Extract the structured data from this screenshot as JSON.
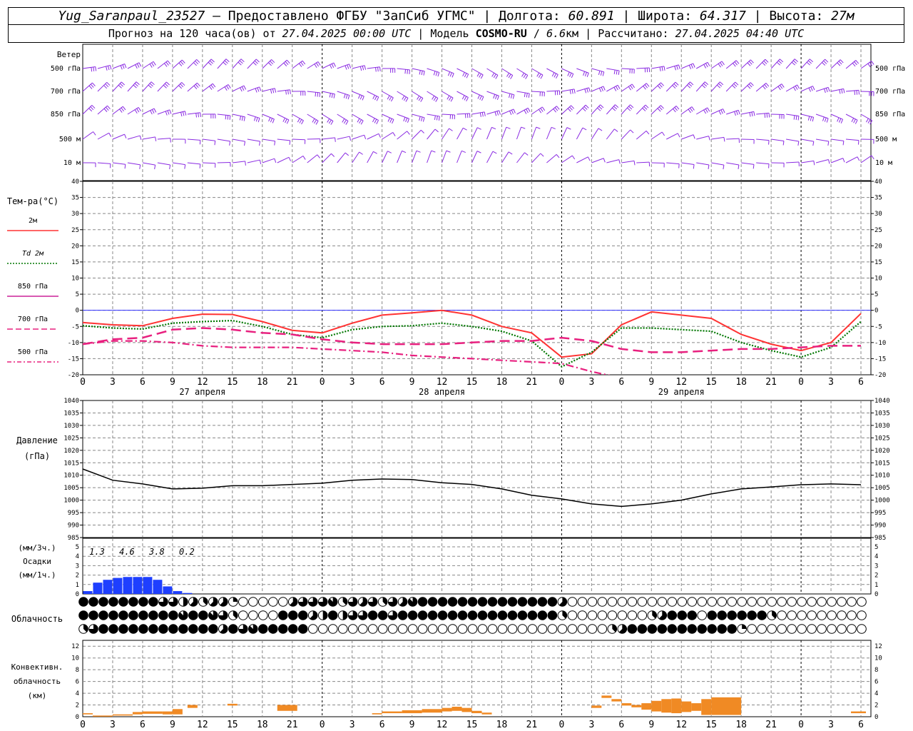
{
  "header": {
    "station": "Yug_Saranpaul_23527",
    "dash": " — ",
    "provider": "Предоставлено ФГБУ \"ЗапСиб УГМС\"",
    "lon_label": "Долгота:",
    "lon_value": "60.891",
    "lat_label": "Широта:",
    "lat_value": "64.317",
    "alt_label": "Высота:",
    "alt_value": "27м",
    "sep": " | ",
    "forecast_prefix": "Прогноз на 120 часа(ов) от",
    "forecast_time": "27.04.2025 00:00 UTC",
    "model_prefix": "Модель",
    "model_name": "COSMO-RU",
    "model_res": "6.6",
    "model_res_unit": "км",
    "calc_label": "Рассчитано:",
    "calc_time": "27.04.2025 04:40 UTC"
  },
  "colors": {
    "wind": "#8a2be2",
    "t2m": "#ff3333",
    "td2m": "#007700",
    "t850": "#cc2299",
    "t700": "#e8207f",
    "t500": "#e8207f",
    "zero_line": "#3333ff",
    "pressure": "#000000",
    "precip": "#1e3fff",
    "convective": "#f08a24",
    "grid": "#888888"
  },
  "chart_data": [
    {
      "type": "line",
      "title": "Ветер",
      "panel": "wind",
      "levels": [
        "500 гПа",
        "700 гПа",
        "850 гПа",
        "500 м",
        "10 м"
      ],
      "x_hours": [
        0,
        120
      ]
    },
    {
      "type": "line",
      "panel": "temperature",
      "title": "Тем-ра(°C)",
      "ylim": [
        -20,
        40
      ],
      "yticks": [
        -20,
        -15,
        -10,
        -5,
        0,
        5,
        10,
        15,
        20,
        25,
        30,
        35,
        40
      ],
      "x_ticks": [
        "0",
        "3",
        "6",
        "9",
        "12",
        "15",
        "18",
        "21",
        "0",
        "3",
        "6",
        "9",
        "12",
        "15",
        "18",
        "21",
        "0",
        "3",
        "6",
        "9",
        "12",
        "15",
        "18",
        "21",
        "0",
        "3",
        "6"
      ],
      "day_labels": [
        "27 апреля",
        "28 апреля",
        "29 апреля"
      ],
      "legend": [
        {
          "label": "2м",
          "style": "solid",
          "color": "#ff3333"
        },
        {
          "label": "Td  2м",
          "style": "dotted",
          "color": "#007700"
        },
        {
          "label": "850 гПа",
          "style": "solid",
          "color": "#cc2299"
        },
        {
          "label": "700 гПа",
          "style": "dashed",
          "color": "#e8207f"
        },
        {
          "label": "500 гПа",
          "style": "dashdot",
          "color": "#e8207f"
        }
      ],
      "x": [
        0,
        3,
        6,
        9,
        12,
        15,
        18,
        21,
        24,
        27,
        30,
        33,
        36,
        39,
        42,
        45,
        48,
        51,
        54,
        57,
        60,
        63,
        66,
        69,
        72,
        75,
        78
      ],
      "series": [
        {
          "name": "2м",
          "style": "solid",
          "values": [
            -3.8,
            -4.5,
            -4.8,
            -2.5,
            -1.2,
            -1.3,
            -3.5,
            -6.2,
            -7.0,
            -4.0,
            -1.5,
            -0.8,
            0.0,
            -1.5,
            -5.0,
            -7.0,
            -14.5,
            -13.5,
            -4.5,
            -0.5,
            -1.5,
            -2.5,
            -7.5,
            -10.5,
            -12.5,
            -10.0,
            -1.0
          ]
        },
        {
          "name": "Td  2м",
          "style": "dotted",
          "values": [
            -4.8,
            -5.5,
            -5.8,
            -4.0,
            -3.5,
            -3.2,
            -5.0,
            -7.5,
            -8.5,
            -6.0,
            -5.0,
            -4.8,
            -4.0,
            -5.0,
            -6.5,
            -9.5,
            -17.5,
            -13.0,
            -5.5,
            -5.5,
            -6.0,
            -6.5,
            -10.0,
            -12.5,
            -14.5,
            -11.5,
            -3.5
          ]
        },
        {
          "name": "850 гПа",
          "style": "solid",
          "values": [
            -10.0,
            -9.0,
            -8.5,
            -6.0,
            -5.5,
            -6.0,
            -7.0,
            -7.5,
            -9.0,
            -10.0,
            -10.5,
            -10.5,
            -10.5,
            -10.0,
            -9.5,
            -9.5,
            -8.5,
            -9.5,
            -12.0,
            -13.0,
            -13.0,
            -12.5,
            -12.0,
            -12.0,
            -11.5,
            -11.0,
            -11.0
          ]
        },
        {
          "name": "700 гПа",
          "style": "dashed",
          "values": [
            -10.5,
            -9.0,
            -8.5,
            -6.0,
            -5.5,
            -6.0,
            -7.0,
            -7.5,
            -9.0,
            -10.0,
            -10.5,
            -10.5,
            -10.5,
            -10.0,
            -9.5,
            -9.5,
            -8.5,
            -9.5,
            -12.0,
            -13.0,
            -13.0,
            -12.5,
            -12.0,
            -12.0,
            -11.5,
            -11.0,
            -11.0
          ]
        },
        {
          "name": "500 гПа",
          "style": "dashdot",
          "values": [
            -10.5,
            -9.5,
            -9.5,
            -10.0,
            -11.0,
            -11.5,
            -11.5,
            -11.5,
            -12.0,
            -12.5,
            -13.0,
            -14.0,
            -14.5,
            -15.0,
            -15.5,
            -16.0,
            -16.5,
            -19.0,
            -21.0,
            null,
            null,
            null,
            null,
            null,
            null,
            null,
            null
          ]
        }
      ]
    },
    {
      "type": "line",
      "panel": "pressure",
      "title": "Давление",
      "ylabel": "(гПа)",
      "ylim": [
        985,
        1040
      ],
      "yticks": [
        985,
        990,
        995,
        1000,
        1005,
        1010,
        1015,
        1020,
        1025,
        1030,
        1035,
        1040
      ],
      "x": [
        0,
        3,
        6,
        9,
        12,
        15,
        18,
        21,
        24,
        27,
        30,
        33,
        36,
        39,
        42,
        45,
        48,
        51,
        54,
        57,
        60,
        63,
        66,
        69,
        72,
        75,
        78
      ],
      "series": [
        {
          "name": "Давление",
          "values": [
            1012.5,
            1008.0,
            1006.5,
            1004.5,
            1004.8,
            1005.8,
            1005.8,
            1006.3,
            1006.8,
            1008.0,
            1008.5,
            1008.3,
            1007.0,
            1006.3,
            1004.5,
            1002.0,
            1000.5,
            998.5,
            997.5,
            998.5,
            1000.0,
            1002.5,
            1004.5,
            1005.3,
            1006.2,
            1006.5,
            1006.2
          ]
        }
      ]
    },
    {
      "type": "bar",
      "panel": "precipitation",
      "title": "Осадки",
      "ylabel_top": "(мм/3ч.)",
      "ylabel_bottom": "(мм/1ч.)",
      "ylim": [
        0,
        5
      ],
      "yticks": [
        0,
        1,
        2,
        3,
        4,
        5
      ],
      "totals_3h": [
        {
          "x": 1.5,
          "value": "1.3"
        },
        {
          "x": 4.5,
          "value": "4.6"
        },
        {
          "x": 7.5,
          "value": "3.8"
        },
        {
          "x": 10.5,
          "value": "0.2"
        }
      ],
      "hours": [
        1,
        2,
        3,
        4,
        5,
        6,
        7,
        8,
        9,
        10,
        11
      ],
      "values": [
        0.3,
        1.2,
        1.5,
        1.7,
        1.8,
        1.8,
        1.8,
        1.5,
        0.8,
        0.3,
        0.1
      ]
    },
    {
      "type": "table",
      "panel": "cloudiness",
      "title": "Облачность",
      "rows": [
        "upper",
        "middle",
        "lower"
      ],
      "hours_total": 79,
      "cover_upper": [
        8,
        8,
        8,
        8,
        8,
        8,
        8,
        8,
        6,
        6,
        4,
        5,
        3,
        5,
        5,
        2,
        0,
        0,
        0,
        0,
        0,
        5,
        6,
        6,
        6,
        7,
        3,
        6,
        5,
        6,
        3,
        6,
        5,
        7,
        8,
        8,
        8,
        8,
        8,
        8,
        8,
        8,
        8,
        8,
        8,
        8,
        8,
        8,
        5,
        0,
        0,
        0,
        0,
        0,
        0,
        0,
        0,
        0,
        0,
        0,
        0,
        0,
        0,
        0,
        0,
        0,
        0,
        0,
        0,
        0,
        0,
        0,
        0,
        0,
        0,
        0,
        0,
        0,
        0
      ],
      "cover_middle": [
        8,
        8,
        8,
        8,
        8,
        8,
        8,
        8,
        8,
        8,
        7,
        8,
        8,
        7,
        6,
        3,
        0,
        0,
        0,
        0,
        8,
        8,
        8,
        5,
        4,
        8,
        4,
        6,
        6,
        8,
        8,
        6,
        8,
        8,
        8,
        8,
        8,
        8,
        8,
        8,
        8,
        8,
        8,
        8,
        8,
        8,
        8,
        8,
        3,
        0,
        0,
        0,
        0,
        0,
        0,
        0,
        0,
        3,
        5,
        8,
        8,
        8,
        0,
        8,
        8,
        8,
        8,
        8,
        8,
        3,
        0,
        0,
        0,
        0,
        0,
        0,
        0,
        0,
        0
      ],
      "cover_lower": [
        3,
        6,
        8,
        8,
        8,
        8,
        8,
        8,
        8,
        8,
        8,
        8,
        8,
        8,
        5,
        8,
        6,
        7,
        8,
        8,
        8,
        8,
        8,
        0,
        0,
        0,
        0,
        0,
        0,
        0,
        0,
        0,
        0,
        0,
        0,
        0,
        0,
        0,
        0,
        0,
        0,
        0,
        0,
        0,
        0,
        0,
        0,
        0,
        0,
        0,
        0,
        0,
        0,
        3,
        5,
        8,
        8,
        8,
        8,
        8,
        8,
        8,
        8,
        8,
        8,
        8,
        2,
        0,
        0,
        0,
        0,
        0,
        0,
        0,
        0,
        0,
        0,
        0,
        0
      ]
    },
    {
      "type": "bar",
      "panel": "convective",
      "title": "Конвективн. облачность",
      "ylabel": "(км)",
      "ylim": [
        0,
        13
      ],
      "yticks": [
        0,
        2,
        4,
        6,
        8,
        10,
        12
      ],
      "segments": [
        {
          "start": 0,
          "end": 1,
          "base": 0.4,
          "top": 0.6
        },
        {
          "start": 1,
          "end": 3,
          "base": 0.1,
          "top": 0.2
        },
        {
          "start": 3,
          "end": 5,
          "base": 0.2,
          "top": 0.4
        },
        {
          "start": 5,
          "end": 6,
          "base": 0.4,
          "top": 0.8
        },
        {
          "start": 6,
          "end": 8,
          "base": 0.5,
          "top": 0.9
        },
        {
          "start": 8,
          "end": 9,
          "base": 0.4,
          "top": 0.9
        },
        {
          "start": 9,
          "end": 10,
          "base": 0.4,
          "top": 1.3
        },
        {
          "start": 10.5,
          "end": 11.5,
          "base": 1.5,
          "top": 2.0
        },
        {
          "start": 14.5,
          "end": 15.5,
          "base": 1.9,
          "top": 2.2
        },
        {
          "start": 19.5,
          "end": 21.5,
          "base": 1.0,
          "top": 2.0
        },
        {
          "start": 29,
          "end": 30,
          "base": 0.4,
          "top": 0.6
        },
        {
          "start": 30,
          "end": 32,
          "base": 0.6,
          "top": 0.9
        },
        {
          "start": 32,
          "end": 34,
          "base": 0.6,
          "top": 1.1
        },
        {
          "start": 34,
          "end": 36,
          "base": 0.7,
          "top": 1.3
        },
        {
          "start": 36,
          "end": 37,
          "base": 0.9,
          "top": 1.5
        },
        {
          "start": 37,
          "end": 38,
          "base": 1.0,
          "top": 1.7
        },
        {
          "start": 38,
          "end": 39,
          "base": 0.8,
          "top": 1.5
        },
        {
          "start": 39,
          "end": 40,
          "base": 0.6,
          "top": 1.0
        },
        {
          "start": 40,
          "end": 41,
          "base": 0.4,
          "top": 0.7
        },
        {
          "start": 51,
          "end": 52,
          "base": 1.5,
          "top": 1.9
        },
        {
          "start": 52,
          "end": 53,
          "base": 3.2,
          "top": 3.6
        },
        {
          "start": 53,
          "end": 54,
          "base": 2.6,
          "top": 3.0
        },
        {
          "start": 54,
          "end": 55,
          "base": 1.9,
          "top": 2.3
        },
        {
          "start": 55,
          "end": 56,
          "base": 1.6,
          "top": 2.0
        },
        {
          "start": 56,
          "end": 57,
          "base": 1.2,
          "top": 2.3
        },
        {
          "start": 57,
          "end": 58,
          "base": 0.9,
          "top": 2.7
        },
        {
          "start": 58,
          "end": 59,
          "base": 0.7,
          "top": 3.0
        },
        {
          "start": 59,
          "end": 60,
          "base": 0.6,
          "top": 3.1
        },
        {
          "start": 60,
          "end": 61,
          "base": 0.8,
          "top": 2.6
        },
        {
          "start": 61,
          "end": 62,
          "base": 1.0,
          "top": 2.3
        },
        {
          "start": 62,
          "end": 63,
          "base": 0.3,
          "top": 3.0
        },
        {
          "start": 63,
          "end": 66,
          "base": 0.3,
          "top": 3.3
        },
        {
          "start": 77,
          "end": 78.5,
          "base": 0.6,
          "top": 0.9
        }
      ]
    }
  ]
}
